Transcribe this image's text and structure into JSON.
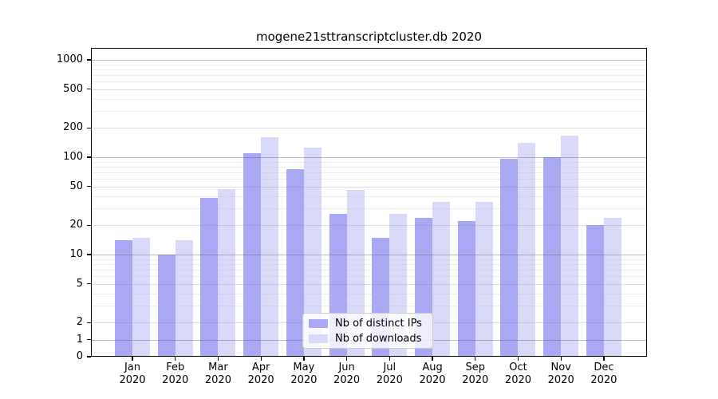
{
  "chart_data": {
    "type": "bar",
    "title": "mogene21sttranscriptcluster.db 2020",
    "categories": [
      "Jan",
      "Feb",
      "Mar",
      "Apr",
      "May",
      "Jun",
      "Jul",
      "Aug",
      "Sep",
      "Oct",
      "Nov",
      "Dec"
    ],
    "category_year": "2020",
    "series": [
      {
        "name": "Nb of distinct IPs",
        "color": "#a8a8f4",
        "values": [
          14,
          10,
          38,
          110,
          75,
          26,
          15,
          24,
          22,
          97,
          100,
          20
        ]
      },
      {
        "name": "Nb of downloads",
        "color": "#d9d9f9",
        "values": [
          15,
          14,
          47,
          160,
          125,
          46,
          26,
          35,
          35,
          140,
          165,
          24
        ]
      }
    ],
    "xlabel": "",
    "ylabel": "",
    "yscale": "symlog (logarithmic above 2, linear from 0 to 2)",
    "yticks": [
      0,
      1,
      2,
      5,
      10,
      20,
      50,
      100,
      200,
      500,
      1000
    ],
    "ylim": [
      0,
      1320
    ],
    "grid": "major and minor horizontal gridlines, drawn over bars",
    "legend_position": "bottom-center"
  }
}
